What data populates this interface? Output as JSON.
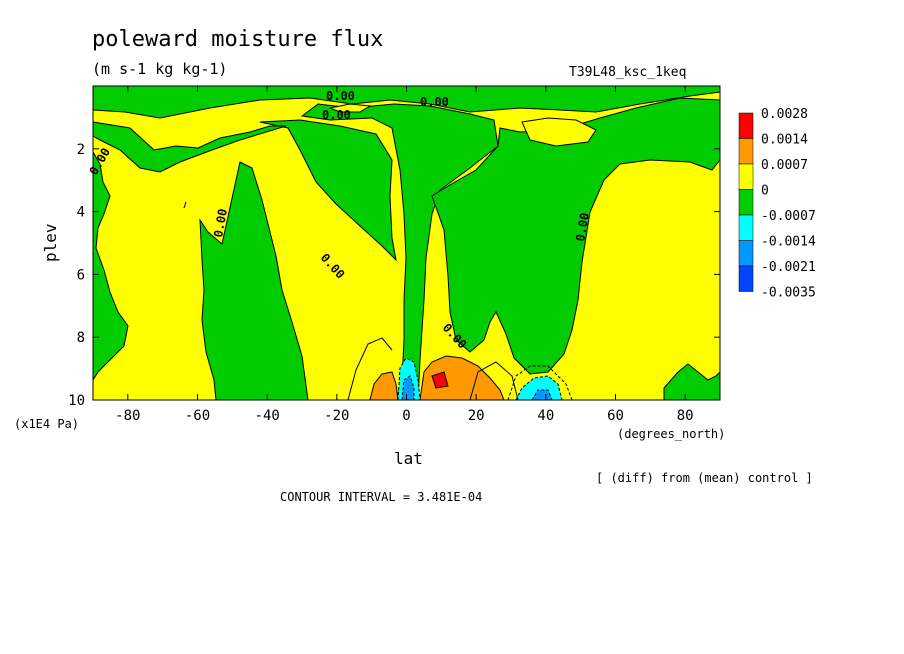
{
  "chart_data": {
    "type": "heatmap",
    "title": "poleward moisture flux",
    "units": "(m s-1 kg kg-1)",
    "experiment": "T39L48_ksc_1keq",
    "xlabel": "lat",
    "xunits": "(degrees_north)",
    "ylabel": "plev",
    "yunits": "(x1E4 Pa)",
    "xlim": [
      -90,
      90
    ],
    "ylim": [
      10,
      0
    ],
    "x_ticks": [
      -80,
      -60,
      -40,
      -20,
      0,
      20,
      40,
      60,
      80
    ],
    "x_tick_labels": [
      "-80",
      "-60",
      "-40",
      "-20",
      "0",
      "20",
      "40",
      "60",
      "80"
    ],
    "y_ticks": [
      2,
      4,
      6,
      8,
      10
    ],
    "y_tick_labels": [
      "2",
      "4",
      "6",
      "8",
      "10"
    ],
    "contour_interval_text": "CONTOUR INTERVAL = 3.481E-04",
    "comparison_note": "[ (diff) from (mean) control ]",
    "contour_label": "0.00",
    "legend": {
      "placement": "right",
      "levels": [
        "0.0028",
        "0.0014",
        "0.0007",
        "0",
        "-0.0007",
        "-0.0014",
        "-0.0021",
        "-0.0035"
      ],
      "colors": [
        "#ff0000",
        "#ff9900",
        "#ffff00",
        "#00cc00",
        "#00ffff",
        "#0099ff",
        "#0044ff"
      ]
    },
    "colors": {
      "positive_band": "#ffff00",
      "near_zero_negative": "#00cc00",
      "strong_positive": "#ff9900",
      "max_positive": "#ff0000",
      "negative_cyan": "#00ffff",
      "negative_blue": "#0099ff",
      "min_negative": "#0044ff"
    },
    "features": [
      {
        "lat": 0,
        "plev": 9.5,
        "sign": "negative",
        "value": -0.0035
      },
      {
        "lat": 10,
        "plev": 9.4,
        "sign": "positive",
        "value": 0.0028
      },
      {
        "lat": 38,
        "plev": 9.6,
        "sign": "negative",
        "value": -0.0014
      }
    ]
  }
}
